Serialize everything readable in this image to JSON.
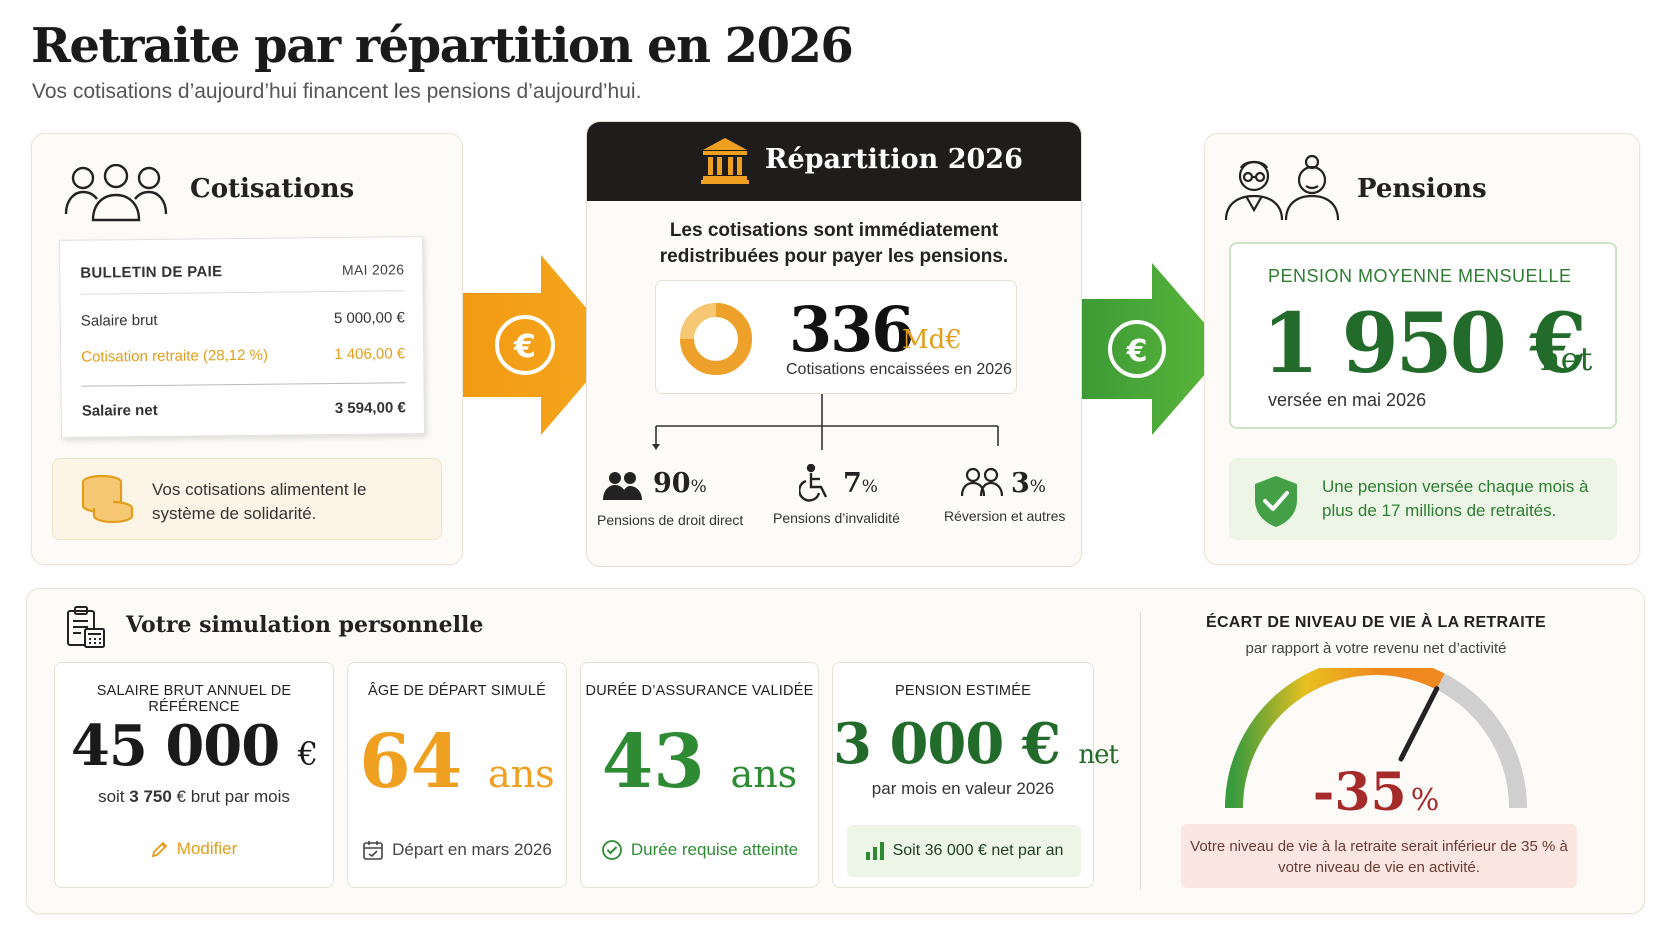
{
  "header": {
    "title": "Retraite par répartition en 2026",
    "subtitle": "Vos cotisations d’aujourd’hui financent les pensions d’aujourd’hui."
  },
  "cotisations": {
    "title": "Cotisations",
    "payslip": {
      "title": "BULLETIN DE PAIE",
      "month": "MAI 2026",
      "rows": [
        {
          "label": "Salaire brut",
          "value": "5 000,00 €"
        },
        {
          "label": "Cotisation retraite (28,12 %)",
          "value": "1 406,00 €"
        }
      ],
      "net_label": "Salaire net",
      "net_value": "3 594,00 €"
    },
    "note": "Vos cotisations alimentent le système de solidarité."
  },
  "repartition": {
    "title": "Répartition 2026",
    "description_line1": "Les cotisations sont immédiatement",
    "description_line2": "redistribuées pour payer les pensions.",
    "amount": "336",
    "amount_unit": "Md€",
    "amount_caption": "Cotisations encaissées en 2026",
    "splits": [
      {
        "pct": "90",
        "unit": "%",
        "label": "Pensions de droit direct"
      },
      {
        "pct": "7",
        "unit": "%",
        "label": "Pensions d’invalidité"
      },
      {
        "pct": "3",
        "unit": "%",
        "label": "Réversion et autres"
      }
    ]
  },
  "pensions": {
    "title": "Pensions",
    "label": "PENSION MOYENNE MENSUELLE",
    "value": "1 950 €",
    "net": "net",
    "caption": "versée en mai 2026",
    "note": "Une pension versée chaque mois à plus de 17 millions de retraités."
  },
  "simulation": {
    "title": "Votre simulation personnelle",
    "tiles": [
      {
        "label": "SALAIRE BRUT ANNUEL DE RÉFÉRENCE",
        "value": "45 000",
        "unit": "€",
        "sub_pre": "soit ",
        "sub_bold": "3 750",
        "sub_post": " € brut par mois",
        "action": "Modifier"
      },
      {
        "label": "ÂGE DE DÉPART SIMULÉ",
        "value": "64",
        "unit": "ans",
        "foot": "Départ en mars 2026"
      },
      {
        "label": "DURÉE D’ASSURANCE VALIDÉE",
        "value": "43",
        "unit": "ans",
        "foot": "Durée requise atteinte"
      },
      {
        "label": "PENSION ESTIMÉE",
        "value": "3 000 €",
        "unit": "net",
        "sub": "par mois en valeur 2026",
        "foot": "Soit 36 000 € net par an"
      }
    ]
  },
  "gauge": {
    "title": "ÉCART DE NIVEAU DE VIE À LA RETRAITE",
    "subtitle": "par rapport à votre revenu net d’activité",
    "value": "-35",
    "unit": "%",
    "level": 0.65,
    "note": "Votre niveau de vie à la retraite serait inférieur de 35 % à votre niveau de vie en activité.",
    "colors": {
      "red": "#a52a2a",
      "green": "#3a9b3d",
      "orange": "#f0a020"
    }
  }
}
